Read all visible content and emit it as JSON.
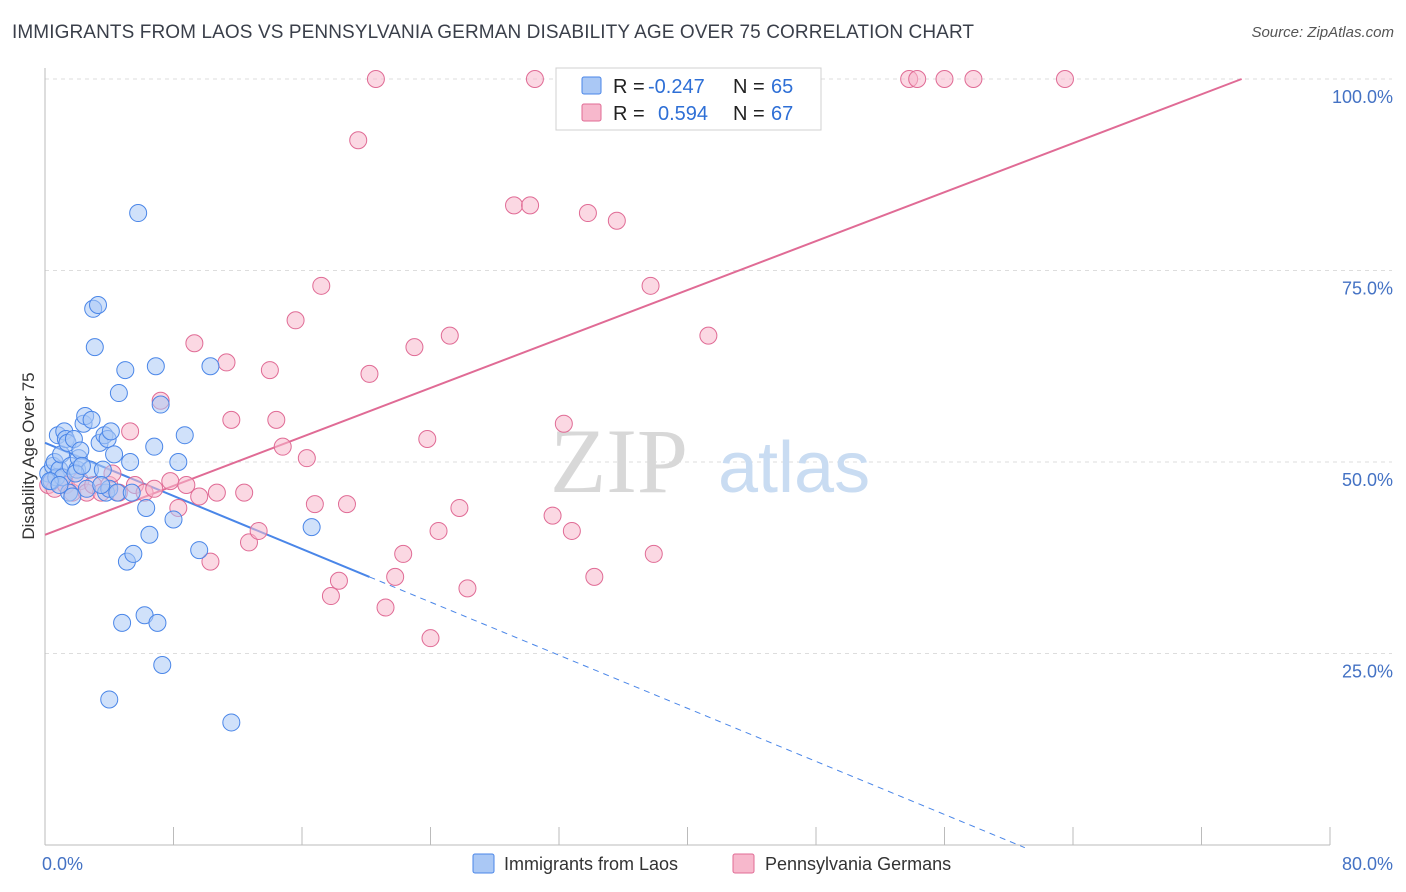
{
  "title": "IMMIGRANTS FROM LAOS VS PENNSYLVANIA GERMAN DISABILITY AGE OVER 75 CORRELATION CHART",
  "source": "Source: ZipAtlas.com",
  "watermark": {
    "zip": "ZIP",
    "atlas": "atlas"
  },
  "colors": {
    "blue": "#4a86e8",
    "blue_fill": "#aac8f5",
    "pink": "#e06b95",
    "pink_fill": "#f7b8cc",
    "axis_label": "#4472c4"
  },
  "stats": [
    {
      "r_label": "R = ",
      "r_value": "-0.247",
      "n_label": "N = ",
      "n_value": "65"
    },
    {
      "r_label": "R = ",
      "r_value": "0.594",
      "n_label": "N = ",
      "n_value": "67"
    }
  ],
  "chart_data": {
    "type": "scatter",
    "title": "IMMIGRANTS FROM LAOS VS PENNSYLVANIA GERMAN DISABILITY AGE OVER 75 CORRELATION CHART",
    "xlabel": "",
    "ylabel": "Disability Age Over 75",
    "xlim": [
      0,
      80
    ],
    "ylim": [
      0,
      100
    ],
    "x_tick_labels": [
      "0.0%",
      "80.0%"
    ],
    "y_tick_labels": [
      "100.0%",
      "75.0%",
      "50.0%",
      "25.0%"
    ],
    "y_ticks": [
      100,
      75,
      50,
      25
    ],
    "grid": true,
    "legend_position": "bottom",
    "series": [
      {
        "name": "Immigrants from Laos",
        "color": "#4a86e8",
        "trend": {
          "x0": 0,
          "y0": 52.5,
          "x1": 20.2,
          "y1": 35.0,
          "dashed_to_x": 61
        },
        "points": [
          [
            0.2,
            48.5
          ],
          [
            0.4,
            47.5
          ],
          [
            0.5,
            49.5
          ],
          [
            0.6,
            50.0
          ],
          [
            0.7,
            48.0
          ],
          [
            0.8,
            53.5
          ],
          [
            0.9,
            49.0
          ],
          [
            1.0,
            51.0
          ],
          [
            1.1,
            48.0
          ],
          [
            1.2,
            54.0
          ],
          [
            1.3,
            53.0
          ],
          [
            1.4,
            52.5
          ],
          [
            1.5,
            46.0
          ],
          [
            1.6,
            49.5
          ],
          [
            1.7,
            45.5
          ],
          [
            1.8,
            53.0
          ],
          [
            2.0,
            49.0
          ],
          [
            2.1,
            50.5
          ],
          [
            2.2,
            51.5
          ],
          [
            2.4,
            55.0
          ],
          [
            2.5,
            56.0
          ],
          [
            2.6,
            46.5
          ],
          [
            2.8,
            49.0
          ],
          [
            2.9,
            55.5
          ],
          [
            3.0,
            70.0
          ],
          [
            3.1,
            65.0
          ],
          [
            3.3,
            70.5
          ],
          [
            3.4,
            52.5
          ],
          [
            3.6,
            49.0
          ],
          [
            3.7,
            53.5
          ],
          [
            3.8,
            46.0
          ],
          [
            3.9,
            53.0
          ],
          [
            4.0,
            46.5
          ],
          [
            4.1,
            54.0
          ],
          [
            4.3,
            51.0
          ],
          [
            4.5,
            46.0
          ],
          [
            4.6,
            59.0
          ],
          [
            4.8,
            29.0
          ],
          [
            5.0,
            62.0
          ],
          [
            5.1,
            37.0
          ],
          [
            5.3,
            50.0
          ],
          [
            5.5,
            38.0
          ],
          [
            5.8,
            82.5
          ],
          [
            6.2,
            30.0
          ],
          [
            6.3,
            44.0
          ],
          [
            6.5,
            40.5
          ],
          [
            6.8,
            52.0
          ],
          [
            6.9,
            62.5
          ],
          [
            7.0,
            29.0
          ],
          [
            7.2,
            57.5
          ],
          [
            7.3,
            23.5
          ],
          [
            8.0,
            42.5
          ],
          [
            8.3,
            50.0
          ],
          [
            8.7,
            53.5
          ],
          [
            9.6,
            38.5
          ],
          [
            10.3,
            62.5
          ],
          [
            11.6,
            16.0
          ],
          [
            16.6,
            41.5
          ],
          [
            0.3,
            47.5
          ],
          [
            1.9,
            48.5
          ],
          [
            2.3,
            49.5
          ],
          [
            3.5,
            47.0
          ],
          [
            4.0,
            19.0
          ],
          [
            5.4,
            46.0
          ],
          [
            0.9,
            47.0
          ]
        ]
      },
      {
        "name": "Pennsylvania Germans",
        "color": "#e06b95",
        "trend": {
          "x0": 0,
          "y0": 40.5,
          "x1": 74.5,
          "y1": 100.0
        },
        "points": [
          [
            0.2,
            47.0
          ],
          [
            0.6,
            46.5
          ],
          [
            1.0,
            48.0
          ],
          [
            1.3,
            47.0
          ],
          [
            1.7,
            46.0
          ],
          [
            2.2,
            47.5
          ],
          [
            2.6,
            46.0
          ],
          [
            3.0,
            47.0
          ],
          [
            3.5,
            46.0
          ],
          [
            4.0,
            47.0
          ],
          [
            4.2,
            48.5
          ],
          [
            4.6,
            46.0
          ],
          [
            5.3,
            54.0
          ],
          [
            5.6,
            47.0
          ],
          [
            6.2,
            46.0
          ],
          [
            6.8,
            46.5
          ],
          [
            7.2,
            58.0
          ],
          [
            7.8,
            47.5
          ],
          [
            8.3,
            44.0
          ],
          [
            8.8,
            47.0
          ],
          [
            9.3,
            65.5
          ],
          [
            9.6,
            45.5
          ],
          [
            10.3,
            37.0
          ],
          [
            10.7,
            46.0
          ],
          [
            11.3,
            63.0
          ],
          [
            11.6,
            55.5
          ],
          [
            12.4,
            46.0
          ],
          [
            12.7,
            39.5
          ],
          [
            13.3,
            41.0
          ],
          [
            14.0,
            62.0
          ],
          [
            14.4,
            55.5
          ],
          [
            14.8,
            52.0
          ],
          [
            15.6,
            68.5
          ],
          [
            16.3,
            50.5
          ],
          [
            16.8,
            44.5
          ],
          [
            17.2,
            73.0
          ],
          [
            17.8,
            32.5
          ],
          [
            18.3,
            34.5
          ],
          [
            18.8,
            44.5
          ],
          [
            19.5,
            92.0
          ],
          [
            20.2,
            61.5
          ],
          [
            20.6,
            100.0
          ],
          [
            21.2,
            31.0
          ],
          [
            21.8,
            35.0
          ],
          [
            22.3,
            38.0
          ],
          [
            23.0,
            65.0
          ],
          [
            23.8,
            53.0
          ],
          [
            24.0,
            27.0
          ],
          [
            24.5,
            41.0
          ],
          [
            25.2,
            66.5
          ],
          [
            25.8,
            44.0
          ],
          [
            26.3,
            33.5
          ],
          [
            29.2,
            83.5
          ],
          [
            30.2,
            83.5
          ],
          [
            30.5,
            100.0
          ],
          [
            31.6,
            43.0
          ],
          [
            32.3,
            55.0
          ],
          [
            32.8,
            41.0
          ],
          [
            33.8,
            82.5
          ],
          [
            34.2,
            35.0
          ],
          [
            35.6,
            81.5
          ],
          [
            37.7,
            73.0
          ],
          [
            37.9,
            38.0
          ],
          [
            41.3,
            66.5
          ],
          [
            53.8,
            100.0
          ],
          [
            54.3,
            100.0
          ],
          [
            56.0,
            100.0
          ]
        ]
      }
    ],
    "extra_pink_points": [
      [
        57.8,
        100.0
      ],
      [
        63.5,
        100.0
      ]
    ]
  }
}
